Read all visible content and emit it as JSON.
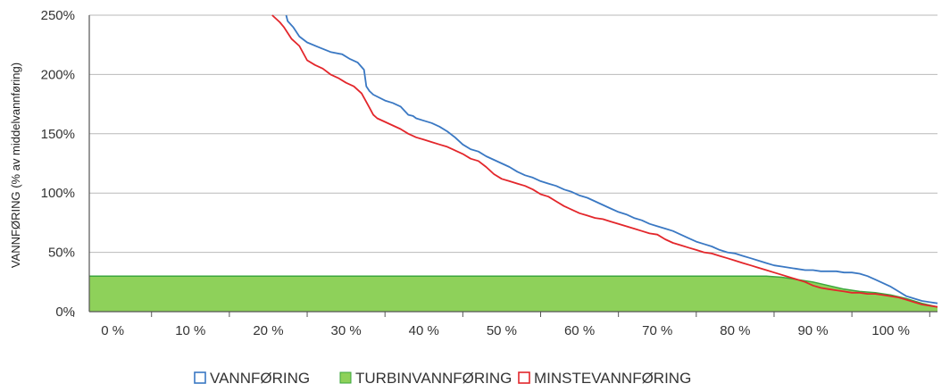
{
  "chart_data": {
    "type": "line",
    "title": "",
    "ylabel": "VANNFØRING (% av middelvannføring)",
    "xlabel": "",
    "xlim": [
      -3,
      106
    ],
    "ylim": [
      0,
      250
    ],
    "x_ticks": [
      0,
      10,
      20,
      30,
      40,
      50,
      60,
      70,
      80,
      90,
      100
    ],
    "x_tick_labels": [
      "0 %",
      "10 %",
      "20 %",
      "30 %",
      "40 %",
      "50 %",
      "60 %",
      "70 %",
      "80 %",
      "90 %",
      "100 %"
    ],
    "y_ticks": [
      0,
      50,
      100,
      150,
      200,
      250
    ],
    "y_tick_labels": [
      "0%",
      "50%",
      "100%",
      "150%",
      "200%",
      "250%"
    ],
    "grid": "horizontal",
    "legend_position": "bottom",
    "series": [
      {
        "name": "VANNFØRING",
        "kind": "line",
        "color": "#3a78c3",
        "x": [
          22.3,
          22.5,
          23.2,
          24.0,
          25.0,
          26.5,
          28.0,
          29.5,
          30.5,
          31.5,
          32.3,
          32.6,
          33.0,
          33.5,
          35.0,
          36.0,
          37.0,
          38.0,
          38.6,
          39.0,
          40.0,
          41.0,
          42.0,
          43.0,
          44.0,
          45.0,
          46.0,
          47.0,
          48.0,
          49.0,
          50.0,
          51.0,
          52.0,
          53.0,
          54.0,
          55.0,
          56.0,
          57.0,
          58.0,
          59.0,
          60.0,
          61.0,
          62.0,
          63.0,
          64.0,
          65.0,
          66.0,
          67.0,
          68.0,
          69.0,
          70.0,
          71.0,
          72.0,
          73.0,
          74.0,
          75.0,
          76.0,
          77.0,
          78.0,
          79.0,
          80.0,
          81.0,
          82.0,
          83.0,
          84.0,
          85.0,
          86.0,
          87.0,
          88.0,
          89.0,
          90.0,
          91.0,
          92.0,
          93.0,
          94.0,
          95.0,
          96.0,
          97.0,
          98.0,
          99.0,
          100.0,
          101.0,
          102.0,
          103.0,
          104.0,
          105.0,
          106.0
        ],
        "y": [
          250,
          245,
          240,
          232,
          227,
          223,
          219,
          217,
          213,
          210,
          204,
          190,
          186,
          183,
          178,
          176,
          173,
          166,
          165,
          163,
          161,
          159,
          156,
          152,
          147,
          141,
          137,
          135,
          131,
          128,
          125,
          122,
          118,
          115,
          113,
          110,
          108,
          106,
          103,
          101,
          98,
          96,
          93,
          90,
          87,
          84,
          82,
          79,
          77,
          74,
          72,
          70,
          68,
          65,
          62,
          59,
          57,
          55,
          52,
          50,
          49,
          47,
          45,
          43,
          41,
          39,
          38,
          37,
          36,
          35,
          35,
          34,
          34,
          34,
          33,
          33,
          32,
          30,
          27,
          24,
          21,
          17,
          13,
          11,
          9,
          8,
          7
        ]
      },
      {
        "name": "TURBINVANNFØRING",
        "kind": "area",
        "color": "#8ed15a",
        "edge_color": "#3aa63c",
        "x": [
          -3,
          84.0,
          86.0,
          88.0,
          90.0,
          92.0,
          94.0,
          96.0,
          98.0,
          100.0,
          102.0,
          104.0,
          106.0
        ],
        "y": [
          30,
          30,
          29,
          27,
          25,
          22,
          19,
          17,
          16,
          14,
          11,
          7,
          4
        ]
      },
      {
        "name": "MINSTEVANNFØRING",
        "kind": "line",
        "color": "#e3262b",
        "x": [
          20.5,
          21.0,
          21.5,
          22.0,
          22.5,
          23.0,
          24.0,
          25.0,
          26.0,
          27.0,
          28.0,
          29.0,
          30.0,
          31.0,
          32.0,
          32.5,
          33.0,
          33.5,
          34.0,
          35.0,
          36.0,
          37.0,
          38.0,
          39.0,
          40.0,
          41.0,
          42.0,
          43.0,
          44.0,
          45.0,
          46.0,
          47.0,
          48.0,
          49.0,
          50.0,
          51.0,
          52.0,
          53.0,
          54.0,
          55.0,
          56.0,
          57.0,
          58.0,
          59.0,
          60.0,
          61.0,
          62.0,
          63.0,
          64.0,
          65.0,
          66.0,
          67.0,
          68.0,
          69.0,
          70.0,
          71.0,
          72.0,
          73.0,
          74.0,
          75.0,
          76.0,
          77.0,
          78.0,
          79.0,
          80.0,
          81.0,
          82.0,
          83.0,
          84.0,
          85.0,
          86.0,
          87.0,
          88.0,
          89.0,
          90.0,
          91.0,
          92.0,
          93.0,
          94.0,
          95.0,
          96.0,
          97.0,
          98.0,
          99.0,
          100.0,
          101.0,
          102.0,
          103.0,
          104.0,
          105.0,
          106.0
        ],
        "y": [
          250,
          247,
          244,
          240,
          235,
          230,
          224,
          212,
          208,
          205,
          200,
          197,
          193,
          190,
          184,
          178,
          172,
          166,
          163,
          160,
          157,
          154,
          150,
          147,
          145,
          143,
          141,
          139,
          136,
          133,
          129,
          127,
          122,
          116,
          112,
          110,
          108,
          106,
          103,
          99,
          97,
          93,
          89,
          86,
          83,
          81,
          79,
          78,
          76,
          74,
          72,
          70,
          68,
          66,
          65,
          61,
          58,
          56,
          54,
          52,
          50,
          49,
          47,
          45,
          43,
          41,
          39,
          37,
          35,
          33,
          31,
          29,
          27,
          25,
          22,
          20,
          19,
          18,
          17,
          16,
          16,
          15,
          15,
          14,
          13,
          12,
          10,
          8,
          6,
          5,
          4
        ]
      }
    ]
  }
}
